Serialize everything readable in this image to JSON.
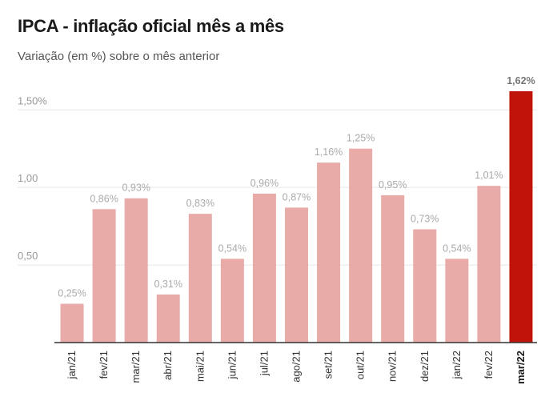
{
  "header": {
    "title": "IPCA - inflação oficial mês a mês",
    "subtitle": "Variação (em %) sobre o mês anterior"
  },
  "colors": {
    "bar": "#e8aba8",
    "highlight": "#c0140b",
    "grid": "#e6e6e6",
    "axis": "#333333"
  },
  "chart_data": {
    "type": "bar",
    "title": "IPCA - inflação oficial mês a mês",
    "subtitle": "Variação (em %) sobre o mês anterior",
    "categories": [
      "jan/21",
      "fev/21",
      "mar/21",
      "abr/21",
      "mai/21",
      "jun/21",
      "jul/21",
      "ago/21",
      "set/21",
      "out/21",
      "nov/21",
      "dez/21",
      "jan/22",
      "fev/22",
      "mar/22"
    ],
    "values": [
      0.25,
      0.86,
      0.93,
      0.31,
      0.83,
      0.54,
      0.96,
      0.87,
      1.16,
      1.25,
      0.95,
      0.73,
      0.54,
      1.01,
      1.62
    ],
    "value_labels": [
      "0,25%",
      "0,86%",
      "0,93%",
      "0,31%",
      "0,83%",
      "0,54%",
      "0,96%",
      "0,87%",
      "1,16%",
      "1,25%",
      "0,95%",
      "0,73%",
      "0,54%",
      "1,01%",
      "1,62%"
    ],
    "highlight_index": 14,
    "yticks": [
      0.5,
      1.0,
      1.5
    ],
    "ytick_labels": [
      "0,50",
      "1,00",
      "1,50%"
    ],
    "ylim": [
      0,
      1.62
    ],
    "xlabel": "",
    "ylabel": "",
    "grid": true,
    "legend": "none"
  }
}
